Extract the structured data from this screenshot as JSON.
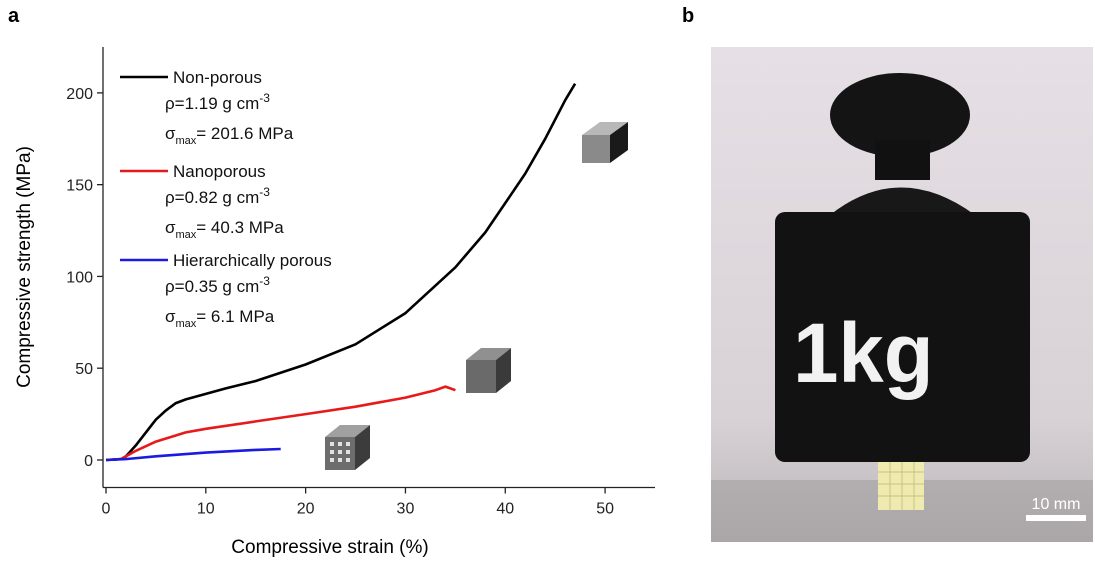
{
  "panel_labels": [
    "a",
    "b"
  ],
  "chart_data": {
    "type": "line",
    "x_label": "Compressive strain (%)",
    "y_label": "Compressive strength (MPa)",
    "xlim": [
      -0.3,
      55
    ],
    "xticks": [
      0,
      10,
      20,
      30,
      40,
      50
    ],
    "ylim": [
      -15,
      225
    ],
    "yticks": [
      0,
      50,
      100,
      150,
      200
    ],
    "series": [
      {
        "name": "Non-porous",
        "color": "#000000",
        "density_label": {
          "text": "ρ=1.19 g cm",
          "sup": "-3"
        },
        "strength_label": {
          "symbol": "σ",
          "sub": "max",
          "text": "= 201.6 MPa"
        },
        "x": [
          0,
          1.5,
          2,
          3,
          4,
          5,
          6,
          7,
          8,
          10,
          12,
          15,
          20,
          25,
          30,
          35,
          38,
          40,
          42,
          44,
          46,
          47
        ],
        "values": [
          0,
          0.5,
          2,
          8,
          15,
          22,
          27,
          31,
          33,
          36,
          39,
          43,
          52,
          63,
          80,
          105,
          124,
          140,
          156,
          175,
          196,
          205
        ]
      },
      {
        "name": "Nanoporous",
        "color": "#e8191a",
        "density_label": {
          "text": "ρ=0.82 g cm",
          "sup": "-3"
        },
        "strength_label": {
          "symbol": "σ",
          "sub": "max",
          "text": "= 40.3 MPa"
        },
        "x": [
          0,
          1.5,
          2,
          3,
          5,
          8,
          10,
          15,
          20,
          25,
          30,
          33,
          34,
          34.5,
          35
        ],
        "values": [
          0,
          0.5,
          2,
          5,
          10,
          15,
          17,
          21,
          25,
          29,
          34,
          38,
          40,
          39,
          38
        ]
      },
      {
        "name": "Hierarchically porous",
        "color": "#1a1ae0",
        "density_label": {
          "text": "ρ=0.35 g cm",
          "sup": "-3"
        },
        "strength_label": {
          "symbol": "σ",
          "sub": "max",
          "text": "= 6.1 MPa"
        },
        "x": [
          0,
          2,
          5,
          10,
          15,
          17.5
        ],
        "values": [
          0,
          0.5,
          2,
          4,
          5.5,
          6
        ]
      }
    ]
  },
  "photo": {
    "weight_label": "1kg",
    "scale_bar": "10 mm"
  }
}
